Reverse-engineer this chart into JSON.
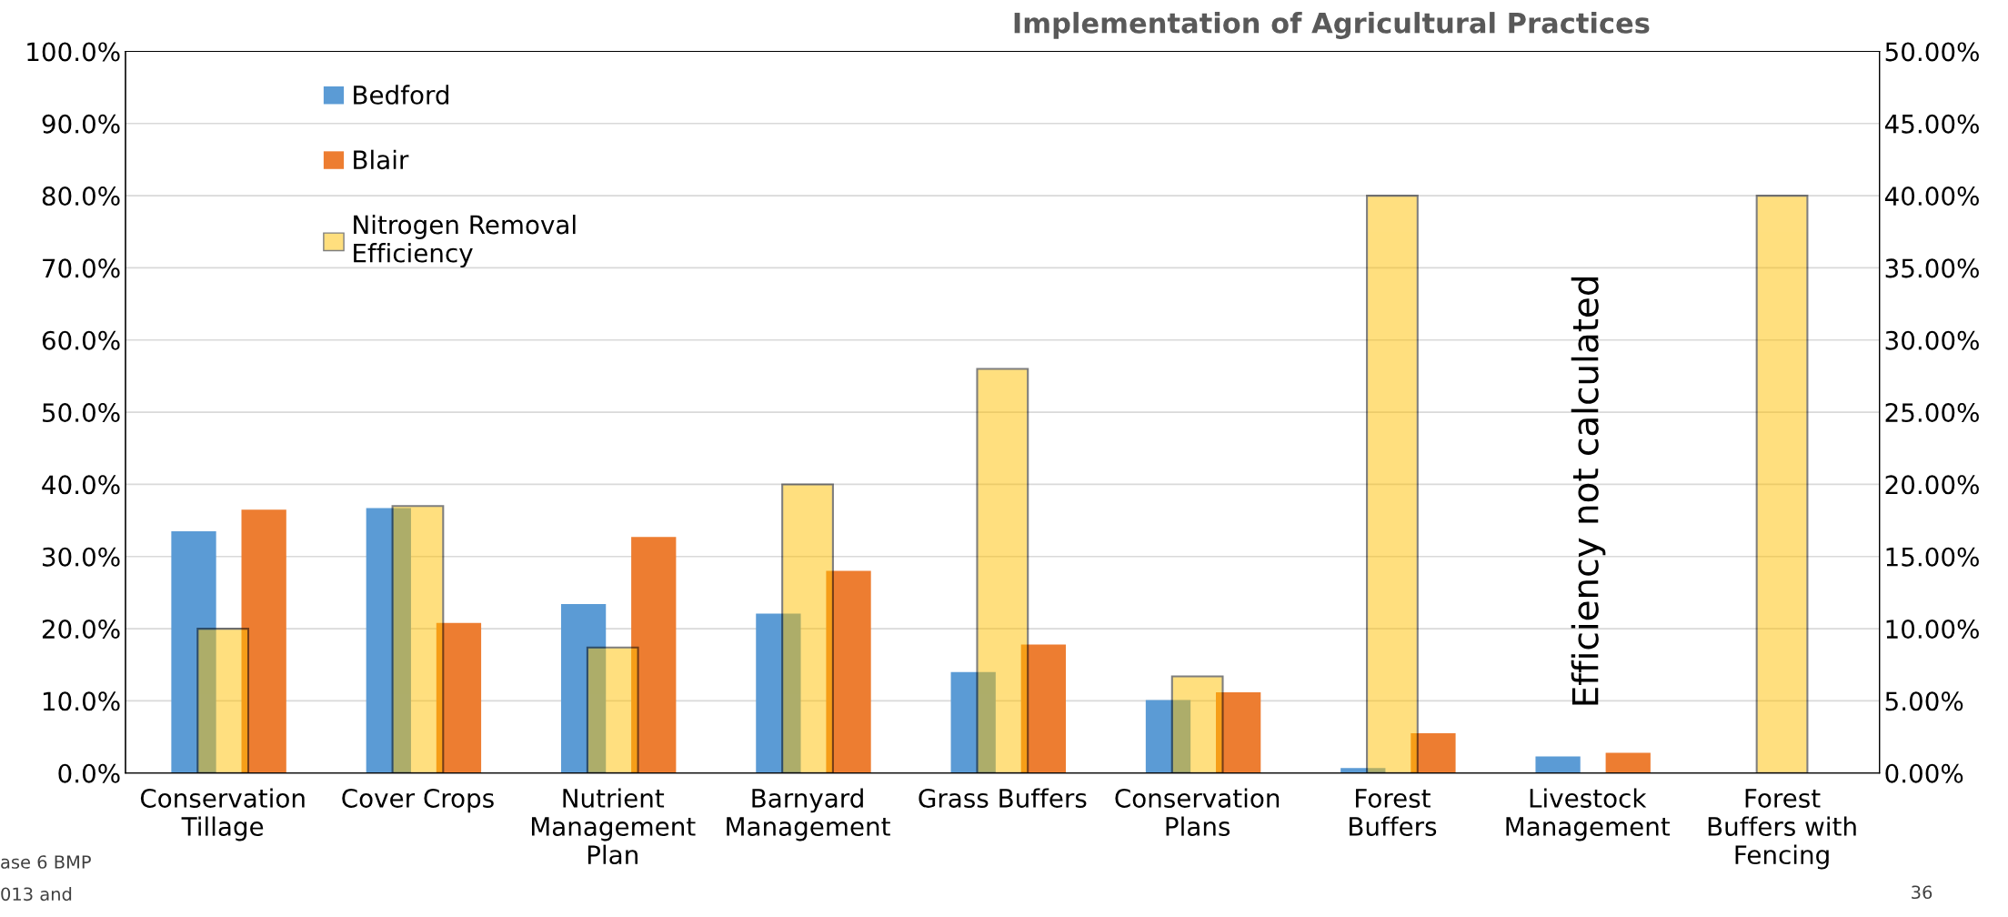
{
  "chart_data": {
    "type": "bar",
    "title": "Implementation of Agricultural Practices",
    "categories": [
      "Conservation Tillage",
      "Cover Crops",
      "Nutrient Management Plan",
      "Barnyard Management",
      "Grass Buffers",
      "Conservation Plans",
      "Forest Buffers",
      "Livestock Management",
      "Forest Buffers with Fencing"
    ],
    "series": [
      {
        "name": "Bedford",
        "color": "#5b9bd5",
        "values": [
          33.5,
          36.7,
          23.4,
          22.1,
          14.0,
          10.1,
          0.7,
          2.3,
          null
        ]
      },
      {
        "name": "Blair",
        "color": "#ed7d31",
        "values": [
          36.5,
          20.8,
          32.7,
          28.0,
          17.8,
          11.2,
          5.5,
          2.8,
          null
        ]
      },
      {
        "name": "Nitrogen Removal Efficiency",
        "color": "#ffc000",
        "axis": "y2",
        "values": [
          10.0,
          18.5,
          8.7,
          20.0,
          28.0,
          6.7,
          40.0,
          null,
          40.0
        ]
      }
    ],
    "ylim": [
      0,
      100
    ],
    "yticks": [
      {
        "value": 0,
        "label": "0.0%"
      },
      {
        "value": 10,
        "label": "10.0%"
      },
      {
        "value": 20,
        "label": "20.0%"
      },
      {
        "value": 30,
        "label": "30.0%"
      },
      {
        "value": 40,
        "label": "40.0%"
      },
      {
        "value": 50,
        "label": "50.0%"
      },
      {
        "value": 60,
        "label": "60.0%"
      },
      {
        "value": 70,
        "label": "70.0%"
      },
      {
        "value": 80,
        "label": "80.0%"
      },
      {
        "value": 90,
        "label": "90.0%"
      },
      {
        "value": 100,
        "label": "100.0%"
      }
    ],
    "y2lim": [
      0,
      50
    ],
    "y2ticks": [
      {
        "value": 0,
        "label": "0.00%"
      },
      {
        "value": 5,
        "label": "5.00%"
      },
      {
        "value": 10,
        "label": "10.00%"
      },
      {
        "value": 15,
        "label": "15.00%"
      },
      {
        "value": 20,
        "label": "20.00%"
      },
      {
        "value": 25,
        "label": "25.00%"
      },
      {
        "value": 30,
        "label": "30.00%"
      },
      {
        "value": 35,
        "label": "35.00%"
      },
      {
        "value": 40,
        "label": "40.00%"
      },
      {
        "value": 45,
        "label": "45.00%"
      },
      {
        "value": 50,
        "label": "50.00%"
      }
    ],
    "grid": "y",
    "legend": "top left",
    "annotations": [
      "Efficiency not calculated",
      "ase 6 BMP",
      "013 and",
      "36"
    ]
  }
}
